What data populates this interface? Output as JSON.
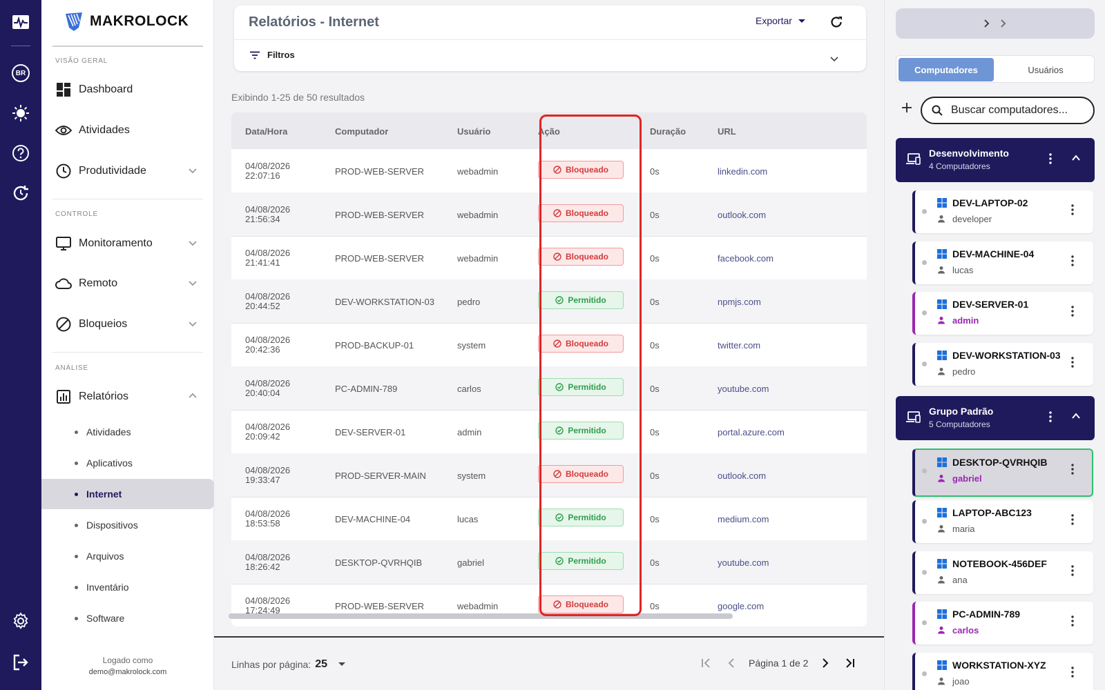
{
  "brand": {
    "name": "MAKROLOCK"
  },
  "rail": {
    "lang_badge": "BR"
  },
  "sidebar": {
    "sections": [
      "VISÃO GERAL",
      "CONTROLE",
      "ANÁLISE"
    ],
    "items": {
      "dashboard": "Dashboard",
      "atividades": "Atividades",
      "produtividade": "Produtividade",
      "monitoramento": "Monitoramento",
      "remoto": "Remoto",
      "bloqueios": "Bloqueios",
      "relatorios": "Relatórios"
    },
    "sub_items": [
      "Atividades",
      "Aplicativos",
      "Internet",
      "Dispositivos",
      "Arquivos",
      "Inventário",
      "Software"
    ],
    "active_sub": "Internet",
    "logged_label": "Logado como",
    "logged_email": "demo@makrolock.com"
  },
  "header": {
    "title": "Relatórios - Internet",
    "export_label": "Exportar",
    "filters_label": "Filtros"
  },
  "results_text": "Exibindo 1-25 de 50 resultados",
  "table": {
    "columns": [
      "Data/Hora",
      "Computador",
      "Usuário",
      "Ação",
      "Duração",
      "URL"
    ],
    "rows": [
      {
        "date": "04/08/2026",
        "time": "22:07:16",
        "computer": "PROD-WEB-SERVER",
        "user": "webadmin",
        "action": "Bloqueado",
        "duration": "0s",
        "url": "linkedin.com"
      },
      {
        "date": "04/08/2026",
        "time": "21:56:34",
        "computer": "PROD-WEB-SERVER",
        "user": "webadmin",
        "action": "Bloqueado",
        "duration": "0s",
        "url": "outlook.com"
      },
      {
        "date": "04/08/2026",
        "time": "21:41:41",
        "computer": "PROD-WEB-SERVER",
        "user": "webadmin",
        "action": "Bloqueado",
        "duration": "0s",
        "url": "facebook.com"
      },
      {
        "date": "04/08/2026",
        "time": "20:44:52",
        "computer": "DEV-WORKSTATION-03",
        "user": "pedro",
        "action": "Permitido",
        "duration": "0s",
        "url": "npmjs.com"
      },
      {
        "date": "04/08/2026",
        "time": "20:42:36",
        "computer": "PROD-BACKUP-01",
        "user": "system",
        "action": "Bloqueado",
        "duration": "0s",
        "url": "twitter.com"
      },
      {
        "date": "04/08/2026",
        "time": "20:40:04",
        "computer": "PC-ADMIN-789",
        "user": "carlos",
        "action": "Permitido",
        "duration": "0s",
        "url": "youtube.com"
      },
      {
        "date": "04/08/2026",
        "time": "20:09:42",
        "computer": "DEV-SERVER-01",
        "user": "admin",
        "action": "Permitido",
        "duration": "0s",
        "url": "portal.azure.com"
      },
      {
        "date": "04/08/2026",
        "time": "19:33:47",
        "computer": "PROD-SERVER-MAIN",
        "user": "system",
        "action": "Bloqueado",
        "duration": "0s",
        "url": "outlook.com"
      },
      {
        "date": "04/08/2026",
        "time": "18:53:58",
        "computer": "DEV-MACHINE-04",
        "user": "lucas",
        "action": "Permitido",
        "duration": "0s",
        "url": "medium.com"
      },
      {
        "date": "04/08/2026",
        "time": "18:26:42",
        "computer": "DESKTOP-QVRHQIB",
        "user": "gabriel",
        "action": "Permitido",
        "duration": "0s",
        "url": "youtube.com"
      },
      {
        "date": "04/08/2026",
        "time": "17:24:49",
        "computer": "PROD-WEB-SERVER",
        "user": "webadmin",
        "action": "Bloqueado",
        "duration": "0s",
        "url": "google.com"
      }
    ]
  },
  "footer": {
    "rows_per_page_label": "Linhas por página:",
    "rows_per_page_value": "25",
    "page_text": "Página 1 de 2"
  },
  "right_panel": {
    "tabs": [
      "Computadores",
      "Usuários"
    ],
    "active_tab": "Computadores",
    "search_placeholder": "Buscar computadores...",
    "groups": [
      {
        "name": "Desenvolvimento",
        "count": "4 Computadores",
        "computers": [
          {
            "name": "DEV-LAPTOP-02",
            "user": "developer",
            "admin": false
          },
          {
            "name": "DEV-MACHINE-04",
            "user": "lucas",
            "admin": false
          },
          {
            "name": "DEV-SERVER-01",
            "user": "admin",
            "admin": true
          },
          {
            "name": "DEV-WORKSTATION-03",
            "user": "pedro",
            "admin": false
          }
        ]
      },
      {
        "name": "Grupo Padrão",
        "count": "5 Computadores",
        "computers": [
          {
            "name": "DESKTOP-QVRHQIB",
            "user": "gabriel",
            "admin": true,
            "selected": true
          },
          {
            "name": "LAPTOP-ABC123",
            "user": "maria",
            "admin": false
          },
          {
            "name": "NOTEBOOK-456DEF",
            "user": "ana",
            "admin": false
          },
          {
            "name": "PC-ADMIN-789",
            "user": "carlos",
            "admin": true
          },
          {
            "name": "WORKSTATION-XYZ",
            "user": "joao",
            "admin": false
          }
        ]
      }
    ]
  },
  "colors": {
    "brand_navy": "#1f1a5c",
    "blocked": "#d23b3b",
    "allowed": "#2f9d4c",
    "highlight": "#e02424",
    "admin_purple": "#9b27b0",
    "tab_active": "#6e95d6"
  }
}
